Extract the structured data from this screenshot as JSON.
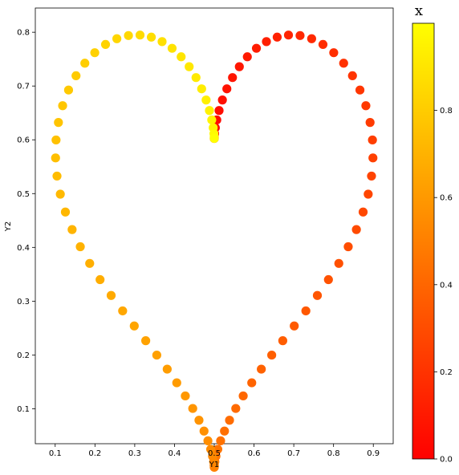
{
  "chart_data": {
    "type": "scatter",
    "title": "",
    "xlabel": "Y1",
    "ylabel": "Y2",
    "xlim": [
      0.05,
      0.95
    ],
    "ylim": [
      0.035,
      0.845
    ],
    "x_ticks": [
      "0.1",
      "0.2",
      "0.3",
      "0.4",
      "0.5",
      "0.6",
      "0.7",
      "0.8",
      "0.9"
    ],
    "y_ticks": [
      "0.1",
      "0.2",
      "0.3",
      "0.4",
      "0.5",
      "0.6",
      "0.7",
      "0.8"
    ],
    "grid": false,
    "colormap": "autumn",
    "colorbar": {
      "title": "x",
      "range": [
        0,
        1
      ],
      "ticks": [
        "0.0",
        "0.2",
        "0.4",
        "0.6",
        "0.8"
      ],
      "color_low": "#ff0000",
      "color_high": "#ffff00"
    },
    "marker_color_scale": "value x in [0,1] mapped from red (0) to yellow (1)",
    "point_count": 100
  }
}
